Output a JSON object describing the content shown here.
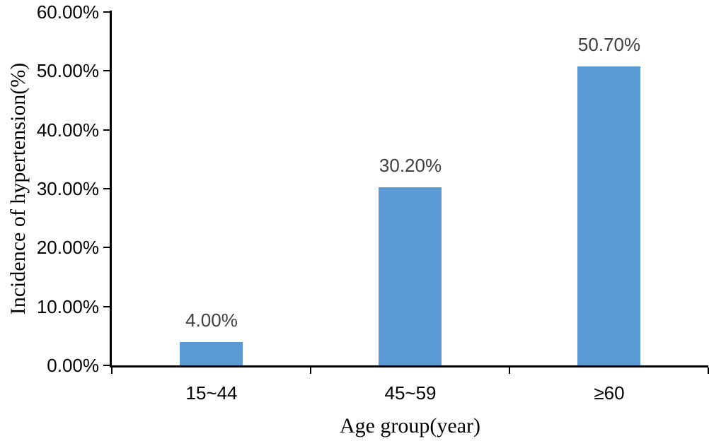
{
  "chart_data": {
    "type": "bar",
    "categories": [
      "15~44",
      "45~59",
      "≥60"
    ],
    "values": [
      4.0,
      30.2,
      50.7
    ],
    "data_labels": [
      "4.00%",
      "30.20%",
      "50.70%"
    ],
    "title": "",
    "xlabel": "Age group(year)",
    "ylabel": "Incidence of hypertension(%)",
    "ylim": [
      0,
      60
    ],
    "ytick_step": 10,
    "ytick_labels": [
      "0.00%",
      "10.00%",
      "20.00%",
      "30.00%",
      "40.00%",
      "50.00%",
      "60.00%"
    ],
    "bar_color": "#5B9BD5",
    "data_label_color": "#404040",
    "tick_label_color": "#000000",
    "axis_color": "#000000",
    "grid": false,
    "legend_position": "none"
  }
}
